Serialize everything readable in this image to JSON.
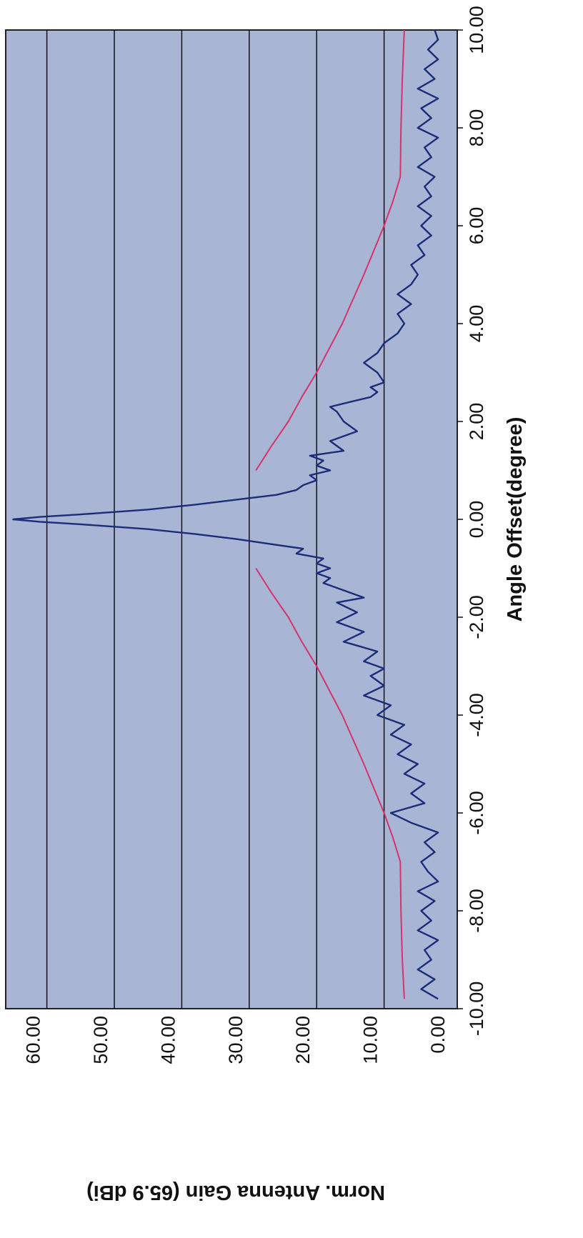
{
  "chart_data": {
    "type": "line",
    "orientation": "rotated-90-clockwise",
    "title": "",
    "xlabel": "Angle Offset(degree)",
    "ylabel": "Norm. Antenna Gain (65.9 dBi)",
    "xlim": [
      -10,
      10
    ],
    "ylim": [
      0,
      66
    ],
    "x_ticks": [
      "-10.00",
      "-8.00",
      "-6.00",
      "-4.00",
      "-2.00",
      "0.00",
      "2.00",
      "4.00",
      "6.00",
      "8.00",
      "10.00"
    ],
    "y_ticks": [
      "0.00",
      "10.00",
      "20.00",
      "30.00",
      "40.00",
      "50.00",
      "60.00"
    ],
    "grid": "horizontal gridlines",
    "plot_background": "#a9b5d4",
    "series": [
      {
        "color": "#1b2c7a",
        "x": [
          -9.8,
          -9.6,
          -9.4,
          -9.2,
          -9.0,
          -8.8,
          -8.6,
          -8.4,
          -8.2,
          -8.0,
          -7.8,
          -7.6,
          -7.4,
          -7.2,
          -7.0,
          -6.8,
          -6.6,
          -6.4,
          -6.2,
          -6.0,
          -5.8,
          -5.6,
          -5.4,
          -5.2,
          -5.0,
          -4.8,
          -4.6,
          -4.4,
          -4.2,
          -4.0,
          -3.8,
          -3.6,
          -3.4,
          -3.2,
          -3.05,
          -2.9,
          -2.7,
          -2.5,
          -2.3,
          -2.1,
          -1.9,
          -1.7,
          -1.6,
          -1.5,
          -1.3,
          -1.2,
          -1.1,
          -1.0,
          -0.9,
          -0.8,
          -0.7,
          -0.6,
          -0.5,
          -0.4,
          -0.3,
          -0.2,
          -0.1,
          -0.05,
          0.0,
          0.05,
          0.1,
          0.2,
          0.3,
          0.4,
          0.5,
          0.6,
          0.7,
          0.8,
          0.9,
          1.0,
          1.1,
          1.2,
          1.3,
          1.4,
          1.6,
          1.8,
          1.9,
          2.0,
          2.2,
          2.3,
          2.4,
          2.5,
          2.6,
          2.7,
          2.8,
          3.0,
          3.2,
          3.4,
          3.6,
          3.8,
          4.0,
          4.2,
          4.4,
          4.6,
          4.8,
          5.0,
          5.2,
          5.4,
          5.6,
          5.8,
          6.0,
          6.2,
          6.4,
          6.6,
          6.8,
          7.0,
          7.2,
          7.4,
          7.6,
          7.8,
          8.0,
          8.2,
          8.4,
          8.6,
          8.8,
          9.0,
          9.2,
          9.4,
          9.6,
          9.8,
          10.0
        ],
        "y": [
          2.0,
          4.5,
          2.5,
          5.0,
          3.0,
          4.0,
          2.0,
          5.0,
          3.0,
          4.5,
          2.5,
          5.0,
          2.0,
          3.5,
          4.5,
          2.5,
          4.0,
          2.0,
          6.0,
          9.0,
          4.0,
          6.0,
          4.0,
          7.0,
          5.0,
          8.0,
          6.0,
          9.0,
          7.0,
          11.0,
          9.0,
          13.0,
          10.0,
          12.0,
          10.0,
          13.0,
          11.0,
          16.0,
          13.0,
          17.0,
          14.0,
          17.0,
          13.0,
          15.0,
          19.0,
          18.0,
          20.0,
          18.0,
          20.0,
          19.0,
          23.0,
          22.0,
          27.0,
          32.0,
          38.0,
          45.0,
          55.0,
          61.0,
          65.0,
          61.0,
          55.0,
          45.0,
          38.0,
          32.0,
          26.0,
          23.0,
          22.0,
          20.0,
          21.0,
          18.0,
          20.0,
          19.0,
          21.0,
          16.0,
          18.0,
          14.0,
          15.0,
          16.0,
          17.0,
          18.0,
          15.0,
          12.0,
          11.0,
          12.0,
          10.0,
          11.0,
          13.0,
          11.0,
          10.0,
          8.0,
          7.0,
          8.0,
          6.0,
          8.0,
          6.0,
          5.0,
          6.0,
          4.0,
          5.0,
          3.0,
          4.5,
          3.0,
          5.0,
          3.0,
          4.0,
          2.5,
          5.0,
          3.0,
          4.0,
          2.0,
          5.0,
          3.0,
          4.5,
          2.0,
          5.0,
          2.5,
          4.0,
          2.0,
          3.5,
          2.0,
          2.5
        ]
      },
      {
        "color": "#d6336c",
        "x": [
          -9.8,
          -9.0,
          -8.0,
          -7.0,
          -6.5,
          -6.0,
          -5.0,
          -4.0,
          -3.0,
          -2.5,
          -2.0,
          -1.5,
          -1.0
        ],
        "y": [
          7.0,
          7.3,
          7.5,
          7.6,
          8.7,
          10.0,
          13.0,
          16.2,
          20.0,
          22.2,
          24.2,
          26.7,
          29.0
        ]
      },
      {
        "color": "#d6336c",
        "x": [
          1.0,
          1.5,
          2.0,
          2.5,
          3.0,
          4.0,
          5.0,
          6.0,
          6.5,
          7.0,
          8.0,
          9.0,
          10.0
        ],
        "y": [
          29.0,
          26.7,
          24.2,
          22.2,
          20.0,
          16.2,
          13.0,
          10.0,
          8.7,
          7.6,
          7.5,
          7.3,
          7.0
        ]
      }
    ]
  }
}
